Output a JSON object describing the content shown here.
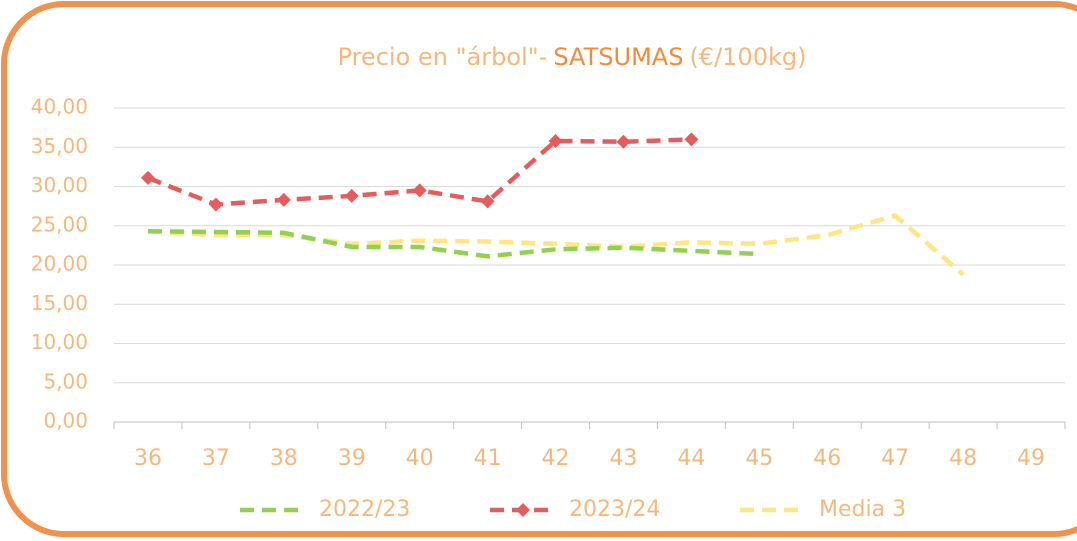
{
  "chart_data": {
    "type": "line",
    "title_parts": [
      "Precio en \"árbol\"-",
      "SATSUMAS",
      "(€/100kg)"
    ],
    "categories": [
      "36",
      "37",
      "38",
      "39",
      "40",
      "41",
      "42",
      "43",
      "44",
      "45",
      "46",
      "47",
      "48",
      "49"
    ],
    "series": [
      {
        "name": "2022/23",
        "color": "#92d050",
        "dashed": true,
        "marker": null,
        "values": [
          24.3,
          24.2,
          24.1,
          22.3,
          22.3,
          21.1,
          22.0,
          22.2,
          21.8,
          21.4,
          null,
          null,
          null,
          null
        ]
      },
      {
        "name": "2023/24",
        "color": "#e65c5c",
        "dashed": true,
        "marker": "diamond",
        "values": [
          31.1,
          27.7,
          28.3,
          28.8,
          29.5,
          28.1,
          35.8,
          35.7,
          36.0,
          null,
          null,
          null,
          null,
          null
        ]
      },
      {
        "name": "Media 3",
        "color": "#ffe680",
        "dashed": true,
        "marker": null,
        "values": [
          24.3,
          23.8,
          23.8,
          22.7,
          23.1,
          23.0,
          22.7,
          22.3,
          22.9,
          22.7,
          23.8,
          26.3,
          18.8,
          null
        ]
      }
    ],
    "ylim": [
      0,
      40
    ],
    "yticks": [
      {
        "value": 0,
        "label": "0,00"
      },
      {
        "value": 5,
        "label": "5,00"
      },
      {
        "value": 10,
        "label": "10,00"
      },
      {
        "value": 15,
        "label": "15,00"
      },
      {
        "value": 20,
        "label": "20,00"
      },
      {
        "value": 25,
        "label": "25,00"
      },
      {
        "value": 30,
        "label": "30,00"
      },
      {
        "value": 35,
        "label": "35,00"
      },
      {
        "value": 40,
        "label": "40,00"
      }
    ],
    "grid": true,
    "legend": "bottom"
  }
}
